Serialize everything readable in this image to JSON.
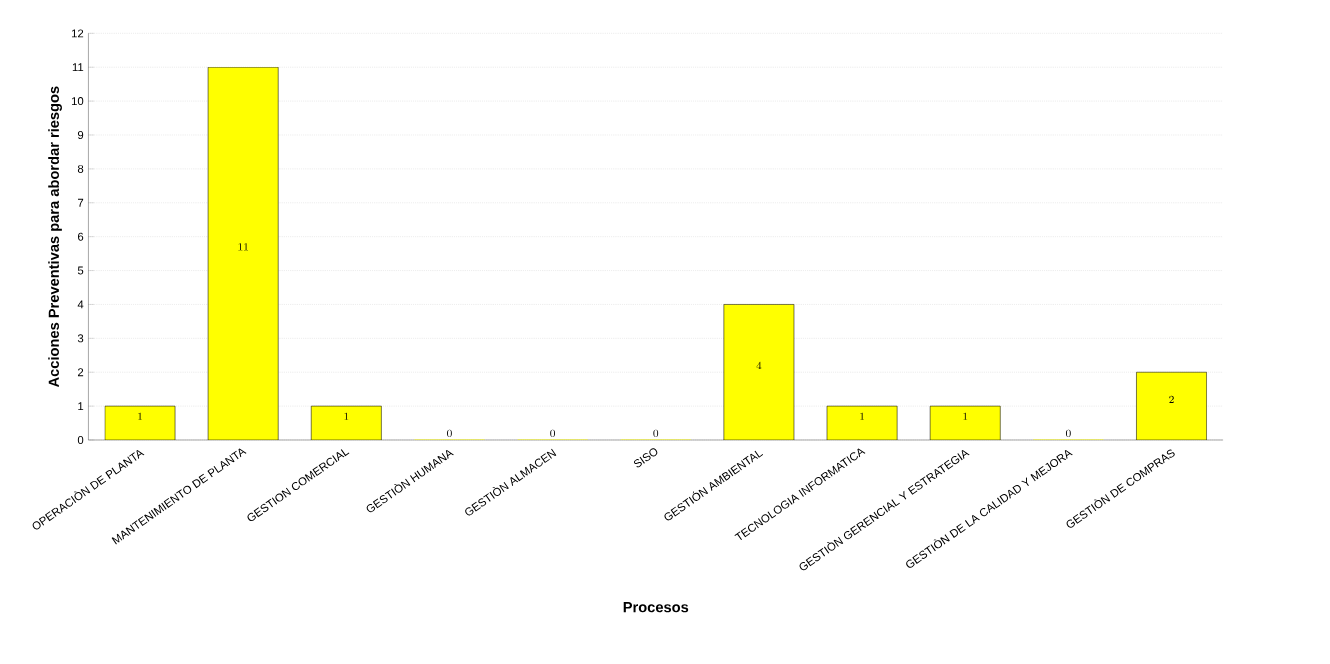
{
  "chart_data": {
    "type": "bar",
    "xlabel": "Procesos",
    "ylabel": "Acciones Preventivas para abordar riesgos",
    "categories": [
      "OPERACIÒN DE PLANTA",
      "MANTENIMIENTO DE PLANTA",
      "GESTION COMERCIAL",
      "GESTIÒN HUMANA",
      "GESTIÒN ALMACEN",
      "SISO",
      "GESTIÓN AMBIENTAL",
      "TECNOLOGIA INFORMATICA",
      "GESTIÒN GERENCIAL Y ESTRATEGIA",
      "GESTIÒN DE LA CALIDAD Y MEJORA",
      "GESTIÒN DE COMPRAS"
    ],
    "values": [
      1,
      11,
      1,
      0,
      0,
      0,
      4,
      1,
      1,
      0,
      2
    ],
    "color": "#ffff00",
    "ylim": [
      0,
      12
    ],
    "yticks": [
      0,
      1,
      2,
      3,
      4,
      5,
      6,
      7,
      8,
      9,
      10,
      11,
      12
    ],
    "grid": "y",
    "data_labels": true
  }
}
